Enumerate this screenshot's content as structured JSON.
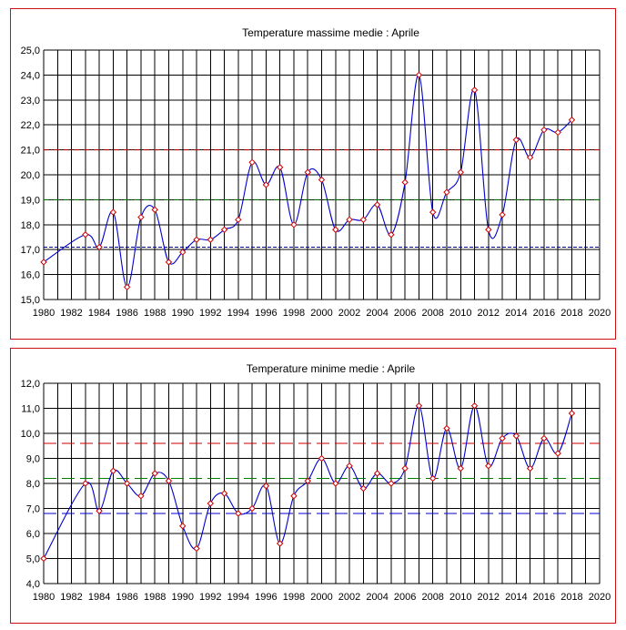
{
  "chart_data": [
    {
      "type": "line",
      "title": "Temperature massime medie : Aprile",
      "xlabel": "",
      "ylabel": "",
      "xlim": [
        1980,
        2020
      ],
      "ylim": [
        15,
        25
      ],
      "x_ticks": [
        "1980",
        "1982",
        "1984",
        "1986",
        "1988",
        "1990",
        "1992",
        "1994",
        "1996",
        "1998",
        "2000",
        "2002",
        "2004",
        "2006",
        "2008",
        "2010",
        "2012",
        "2014",
        "2016",
        "2018",
        "2020"
      ],
      "y_ticks": [
        "15,0",
        "16,0",
        "17,0",
        "18,0",
        "19,0",
        "20,0",
        "21,0",
        "22,0",
        "23,0",
        "24,0",
        "25,0"
      ],
      "grid": true,
      "line_color": "#0000cc",
      "marker_color": "#cc0000",
      "reference_lines": [
        {
          "y": 21.0,
          "color": "#cc0000",
          "dash": "dash-dot"
        },
        {
          "y": 19.0,
          "color": "#008000",
          "dash": "dash-dot"
        },
        {
          "y": 17.1,
          "color": "#000080",
          "dash": "dashed"
        }
      ],
      "series": [
        {
          "x": [
            1980,
            1983,
            1984,
            1985,
            1986,
            1987,
            1988,
            1989,
            1990,
            1991,
            1992,
            1993,
            1994,
            1995,
            1996,
            1997,
            1998,
            1999,
            2000,
            2001,
            2002,
            2003,
            2004,
            2005,
            2006,
            2007,
            2008,
            2009,
            2010,
            2011,
            2012,
            2013,
            2014,
            2015,
            2016,
            2017,
            2018
          ],
          "y": [
            16.5,
            17.6,
            17.1,
            18.5,
            15.5,
            18.3,
            18.6,
            16.5,
            16.9,
            17.4,
            17.4,
            17.8,
            18.2,
            20.5,
            19.6,
            20.3,
            18.0,
            20.1,
            19.8,
            17.8,
            18.2,
            18.2,
            18.8,
            17.6,
            19.7,
            24.0,
            18.5,
            19.3,
            20.1,
            23.4,
            17.8,
            18.4,
            21.4,
            20.7,
            21.8,
            21.7,
            22.2
          ]
        }
      ]
    },
    {
      "type": "line",
      "title": "Temperature minime medie : Aprile",
      "xlabel": "",
      "ylabel": "",
      "xlim": [
        1980,
        2020
      ],
      "ylim": [
        4,
        12
      ],
      "x_ticks": [
        "1980",
        "1982",
        "1984",
        "1986",
        "1988",
        "1990",
        "1992",
        "1994",
        "1996",
        "1998",
        "2000",
        "2002",
        "2004",
        "2006",
        "2008",
        "2010",
        "2012",
        "2014",
        "2016",
        "2018",
        "2020"
      ],
      "y_ticks": [
        "4,0",
        "5,0",
        "6,0",
        "7,0",
        "8,0",
        "9,0",
        "10,0",
        "11,0",
        "12,0"
      ],
      "grid": true,
      "line_color": "#0000cc",
      "marker_color": "#cc0000",
      "reference_lines": [
        {
          "y": 9.6,
          "color": "#cc0000",
          "dash": "long-dash"
        },
        {
          "y": 8.2,
          "color": "#008000",
          "dash": "long-dash"
        },
        {
          "y": 6.8,
          "color": "#0000cc",
          "dash": "long-dash"
        }
      ],
      "series": [
        {
          "x": [
            1980,
            1983,
            1984,
            1985,
            1986,
            1987,
            1988,
            1989,
            1990,
            1991,
            1992,
            1993,
            1994,
            1995,
            1996,
            1997,
            1998,
            1999,
            2000,
            2001,
            2002,
            2003,
            2004,
            2005,
            2006,
            2007,
            2008,
            2009,
            2010,
            2011,
            2012,
            2013,
            2014,
            2015,
            2016,
            2017,
            2018
          ],
          "y": [
            5.0,
            8.0,
            6.9,
            8.5,
            8.0,
            7.5,
            8.4,
            8.1,
            6.3,
            5.4,
            7.2,
            7.6,
            6.8,
            7.0,
            7.9,
            5.6,
            7.5,
            8.1,
            9.0,
            8.0,
            8.7,
            7.8,
            8.4,
            8.0,
            8.6,
            11.1,
            8.2,
            10.2,
            8.6,
            11.1,
            8.7,
            9.8,
            9.9,
            8.6,
            9.8,
            9.2,
            10.8
          ]
        }
      ]
    }
  ]
}
